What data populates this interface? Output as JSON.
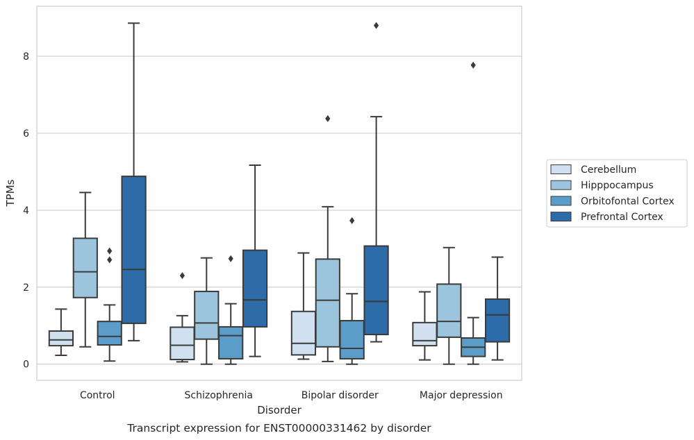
{
  "chart_data": {
    "type": "boxplot",
    "caption": "Transcript expression for ENST00000331462 by disorder",
    "xlabel": "Disorder",
    "ylabel": "TPMs",
    "ylim": [
      -0.42,
      9.3
    ],
    "yticks": [
      0,
      2,
      4,
      6,
      8
    ],
    "grid": "horizontal",
    "legend_position": "right",
    "categories": [
      "Control",
      "Schizophrenia",
      "Bipolar disorder",
      "Major depression"
    ],
    "series": [
      {
        "name": "Cerebellum",
        "color": "#d0e0f0",
        "boxes": [
          {
            "whisker_low": 0.23,
            "q1": 0.48,
            "median": 0.63,
            "q3": 0.86,
            "whisker_high": 1.43,
            "outliers": []
          },
          {
            "whisker_low": 0.06,
            "q1": 0.12,
            "median": 0.49,
            "q3": 0.96,
            "whisker_high": 1.26,
            "outliers": [
              2.3
            ]
          },
          {
            "whisker_low": 0.13,
            "q1": 0.24,
            "median": 0.54,
            "q3": 1.37,
            "whisker_high": 2.89,
            "outliers": []
          },
          {
            "whisker_low": 0.11,
            "q1": 0.48,
            "median": 0.61,
            "q3": 1.08,
            "whisker_high": 1.88,
            "outliers": []
          }
        ]
      },
      {
        "name": "Hipppocampus",
        "color": "#9dc4dd",
        "boxes": [
          {
            "whisker_low": 0.45,
            "q1": 1.73,
            "median": 2.4,
            "q3": 3.27,
            "whisker_high": 4.46,
            "outliers": []
          },
          {
            "whisker_low": 0.0,
            "q1": 0.65,
            "median": 1.07,
            "q3": 1.89,
            "whisker_high": 2.76,
            "outliers": []
          },
          {
            "whisker_low": 0.07,
            "q1": 0.45,
            "median": 1.66,
            "q3": 2.73,
            "whisker_high": 4.09,
            "outliers": [
              6.38
            ]
          },
          {
            "whisker_low": 0.0,
            "q1": 0.7,
            "median": 1.11,
            "q3": 2.08,
            "whisker_high": 3.03,
            "outliers": []
          }
        ]
      },
      {
        "name": "Orbitofontal Cortex",
        "color": "#5b9cc8",
        "boxes": [
          {
            "whisker_low": 0.08,
            "q1": 0.5,
            "median": 0.72,
            "q3": 1.11,
            "whisker_high": 1.54,
            "outliers": [
              2.71,
              2.94
            ]
          },
          {
            "whisker_low": 0.0,
            "q1": 0.14,
            "median": 0.74,
            "q3": 0.97,
            "whisker_high": 1.57,
            "outliers": [
              2.74
            ]
          },
          {
            "whisker_low": 0.0,
            "q1": 0.14,
            "median": 0.41,
            "q3": 1.13,
            "whisker_high": 1.83,
            "outliers": [
              3.73
            ]
          },
          {
            "whisker_low": 0.0,
            "q1": 0.2,
            "median": 0.44,
            "q3": 0.68,
            "whisker_high": 1.21,
            "outliers": [
              7.77
            ]
          }
        ]
      },
      {
        "name": "Prefrontal Cortex",
        "color": "#2d6ba9",
        "boxes": [
          {
            "whisker_low": 0.61,
            "q1": 1.06,
            "median": 2.46,
            "q3": 4.88,
            "whisker_high": 8.86,
            "outliers": []
          },
          {
            "whisker_low": 0.2,
            "q1": 0.97,
            "median": 1.67,
            "q3": 2.96,
            "whisker_high": 5.17,
            "outliers": []
          },
          {
            "whisker_low": 0.58,
            "q1": 0.77,
            "median": 1.63,
            "q3": 3.07,
            "whisker_high": 6.43,
            "outliers": [
              8.8
            ]
          },
          {
            "whisker_low": 0.11,
            "q1": 0.58,
            "median": 1.28,
            "q3": 1.69,
            "whisker_high": 2.78,
            "outliers": []
          }
        ]
      }
    ]
  }
}
